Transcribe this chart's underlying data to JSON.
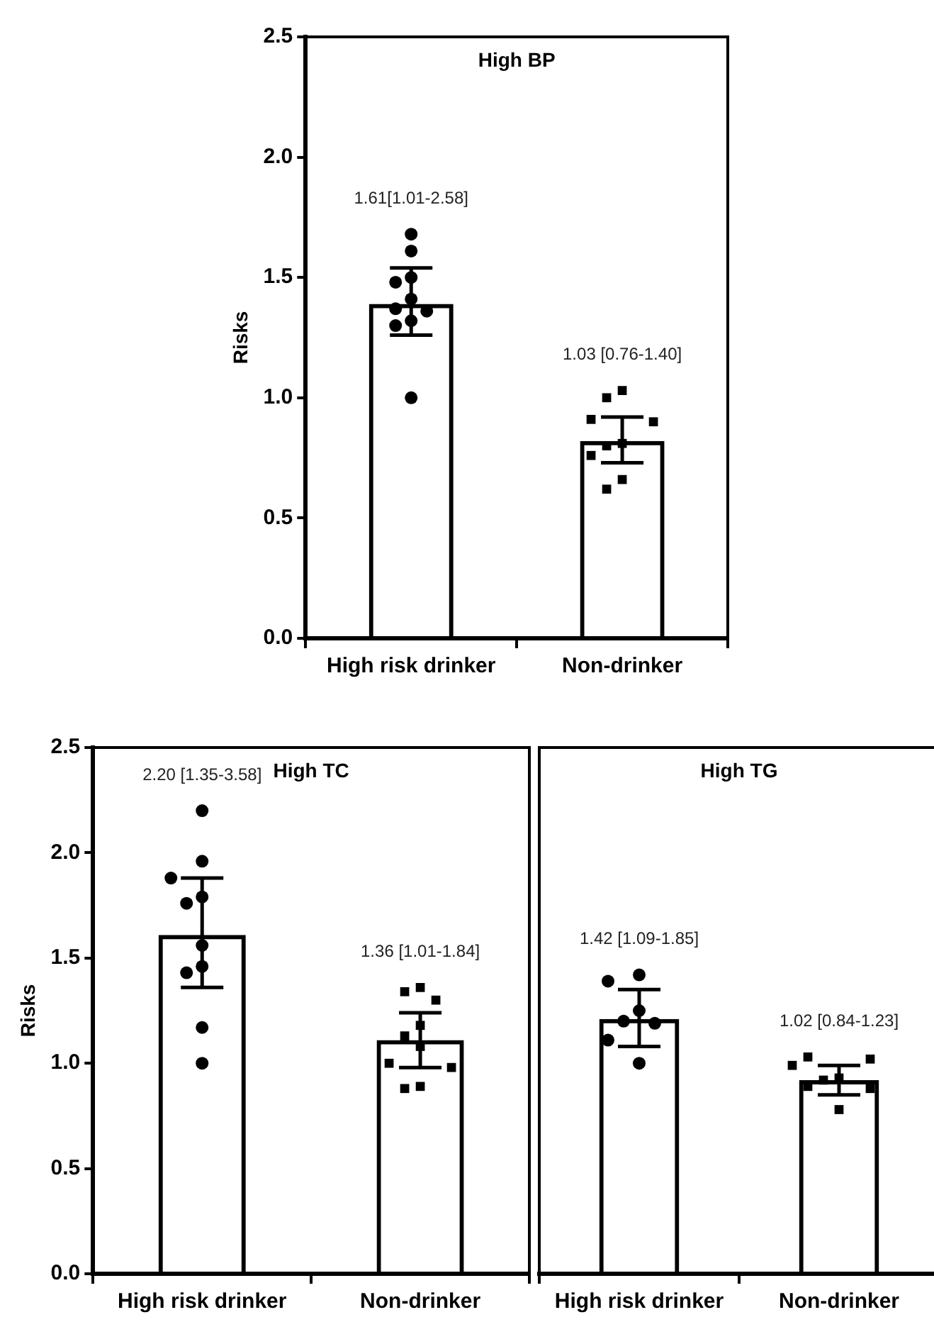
{
  "chart_data": [
    {
      "type": "bar",
      "title": "High BP",
      "ylabel": "Risks",
      "categories": [
        "High risk drinker",
        "Non-drinker"
      ],
      "ylim": [
        0,
        2.5
      ],
      "yticks": [
        {
          "value": 0,
          "label": "0.0"
        },
        {
          "value": 0.5,
          "label": "0.5"
        },
        {
          "value": 1,
          "label": "1.0"
        },
        {
          "value": 1.5,
          "label": "1.5"
        },
        {
          "value": 2,
          "label": "2.0"
        },
        {
          "value": 2.5,
          "label": "2.5"
        }
      ],
      "series": [
        {
          "type": "bar",
          "color": "#000000",
          "values": [
            1.39,
            0.82
          ],
          "errors": [
            [
              1.26,
              1.54
            ],
            [
              0.73,
              0.92
            ]
          ]
        },
        {
          "type": "scatter",
          "marker": "circle",
          "color": "#000000",
          "x": [
            "High risk drinker",
            "High risk drinker",
            "High risk drinker",
            "High risk drinker",
            "High risk drinker",
            "High risk drinker",
            "High risk drinker",
            "High risk drinker",
            "High risk drinker",
            "High risk drinker"
          ],
          "values": [
            1.68,
            1.61,
            1.5,
            1.48,
            1.41,
            1.37,
            1.36,
            1.32,
            1.3,
            1.0
          ]
        },
        {
          "type": "scatter",
          "marker": "square",
          "color": "#000000",
          "x": [
            "Non-drinker",
            "Non-drinker",
            "Non-drinker",
            "Non-drinker",
            "Non-drinker",
            "Non-drinker",
            "Non-drinker",
            "Non-drinker",
            "Non-drinker"
          ],
          "values": [
            1.03,
            1.0,
            0.91,
            0.9,
            0.81,
            0.8,
            0.76,
            0.66,
            0.62
          ]
        }
      ],
      "annotations": [
        "1.61[1.01-2.58]",
        "1.03 [0.76-1.40]"
      ]
    },
    {
      "type": "bar",
      "title": "High TC",
      "ylabel": "Risks",
      "categories": [
        "High risk drinker",
        "Non-drinker"
      ],
      "ylim": [
        0,
        2.5
      ],
      "yticks": [
        {
          "value": 0,
          "label": "0.0"
        },
        {
          "value": 0.5,
          "label": "0.5"
        },
        {
          "value": 1,
          "label": "1.0"
        },
        {
          "value": 1.5,
          "label": "1.5"
        },
        {
          "value": 2,
          "label": "2.0"
        },
        {
          "value": 2.5,
          "label": "2.5"
        }
      ],
      "series": [
        {
          "type": "bar",
          "color": "#000000",
          "values": [
            1.61,
            1.11
          ],
          "errors": [
            [
              1.36,
              1.88
            ],
            [
              0.98,
              1.24
            ]
          ]
        },
        {
          "type": "scatter",
          "marker": "circle",
          "color": "#000000",
          "x": [
            "High risk drinker",
            "High risk drinker",
            "High risk drinker",
            "High risk drinker",
            "High risk drinker",
            "High risk drinker",
            "High risk drinker",
            "High risk drinker",
            "High risk drinker",
            "High risk drinker"
          ],
          "values": [
            2.2,
            1.96,
            1.88,
            1.79,
            1.76,
            1.56,
            1.46,
            1.43,
            1.17,
            1.0
          ]
        },
        {
          "type": "scatter",
          "marker": "square",
          "color": "#000000",
          "x": [
            "Non-drinker",
            "Non-drinker",
            "Non-drinker",
            "Non-drinker",
            "Non-drinker",
            "Non-drinker",
            "Non-drinker",
            "Non-drinker",
            "Non-drinker",
            "Non-drinker"
          ],
          "values": [
            1.36,
            1.34,
            1.3,
            1.18,
            1.13,
            1.08,
            1.0,
            0.98,
            0.89,
            0.88
          ]
        }
      ],
      "annotations": [
        "2.20 [1.35-3.58]",
        "1.36 [1.01-1.84]"
      ]
    },
    {
      "type": "bar",
      "title": "High TG",
      "categories": [
        "High risk drinker",
        "Non-drinker"
      ],
      "ylim": [
        0,
        2.5
      ],
      "tick_labels": "x",
      "series": [
        {
          "type": "bar",
          "color": "#000000",
          "values": [
            1.21,
            0.92
          ],
          "errors": [
            [
              1.08,
              1.35
            ],
            [
              0.85,
              0.99
            ]
          ]
        },
        {
          "type": "scatter",
          "marker": "circle",
          "color": "#000000",
          "x": [
            "High risk drinker",
            "High risk drinker",
            "High risk drinker",
            "High risk drinker",
            "High risk drinker",
            "High risk drinker",
            "High risk drinker"
          ],
          "values": [
            1.42,
            1.39,
            1.25,
            1.2,
            1.19,
            1.11,
            1.0
          ]
        },
        {
          "type": "scatter",
          "marker": "square",
          "color": "#000000",
          "x": [
            "Non-drinker",
            "Non-drinker",
            "Non-drinker",
            "Non-drinker",
            "Non-drinker",
            "Non-drinker",
            "Non-drinker",
            "Non-drinker"
          ],
          "values": [
            1.03,
            1.02,
            0.99,
            0.93,
            0.92,
            0.89,
            0.88,
            0.78
          ]
        }
      ],
      "annotations": [
        "1.42 [1.09-1.85]",
        "1.02 [0.84-1.23]"
      ]
    }
  ]
}
